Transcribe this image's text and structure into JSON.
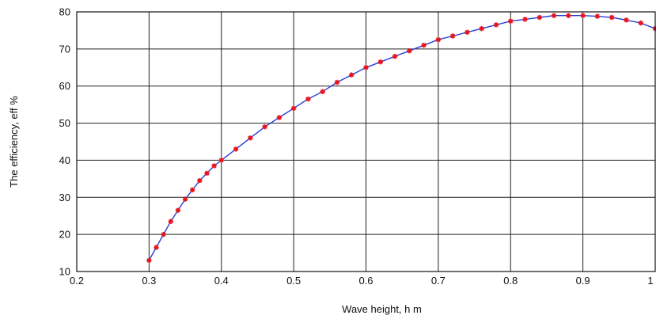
{
  "chart_data": {
    "type": "line",
    "title": "",
    "xlabel": "Wave height, h m",
    "ylabel": "The efficiency, eff %",
    "xlim": [
      0.2,
      1.0
    ],
    "ylim": [
      10,
      80
    ],
    "xticks": [
      0.2,
      0.3,
      0.4,
      0.5,
      0.6,
      0.7,
      0.8,
      0.9,
      1.0
    ],
    "xtick_labels": [
      "0.2",
      "0.3",
      "0.4",
      "0.5",
      "0.6",
      "0.7",
      "0.8",
      "0.9",
      "1"
    ],
    "yticks": [
      10,
      20,
      30,
      40,
      50,
      60,
      70,
      80
    ],
    "ytick_labels": [
      "10",
      "20",
      "30",
      "40",
      "50",
      "60",
      "70",
      "80"
    ],
    "grid": true,
    "series": [
      {
        "name": "",
        "line_color": "#2a3fd6",
        "marker_color": "#e8141c",
        "marker": "asterisk",
        "x": [
          0.3,
          0.31,
          0.32,
          0.33,
          0.34,
          0.35,
          0.36,
          0.37,
          0.38,
          0.39,
          0.4,
          0.42,
          0.44,
          0.46,
          0.48,
          0.5,
          0.52,
          0.54,
          0.56,
          0.58,
          0.6,
          0.62,
          0.64,
          0.66,
          0.68,
          0.7,
          0.72,
          0.74,
          0.76,
          0.78,
          0.8,
          0.82,
          0.84,
          0.86,
          0.88,
          0.9,
          0.92,
          0.94,
          0.96,
          0.98,
          1.0
        ],
        "y": [
          13,
          16.5,
          20,
          23.5,
          26.5,
          29.5,
          32,
          34.5,
          36.5,
          38.5,
          40,
          43,
          46,
          49,
          51.5,
          54,
          56.5,
          58.5,
          61,
          63,
          65,
          66.5,
          68,
          69.5,
          71,
          72.5,
          73.5,
          74.5,
          75.5,
          76.5,
          77.5,
          78,
          78.5,
          79,
          79,
          79,
          78.8,
          78.5,
          77.8,
          77,
          75.5
        ]
      }
    ]
  }
}
